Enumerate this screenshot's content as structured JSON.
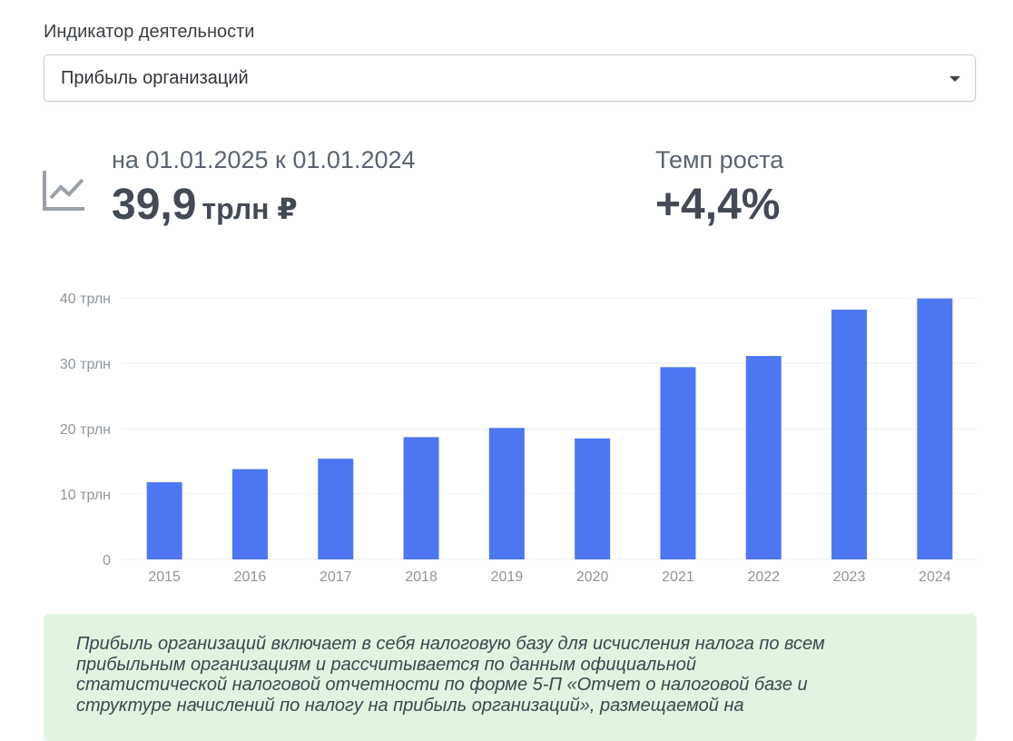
{
  "indicator": {
    "label": "Индикатор деятельности",
    "selected": "Прибыль организаций"
  },
  "summary": {
    "period": "на 01.01.2025 к 01.01.2024",
    "value": "39,9",
    "unit": "трлн ₽",
    "growth_label": "Темп роста",
    "growth_value": "+4,4%"
  },
  "colors": {
    "bar": "#4d76f2",
    "grid": "#ececec",
    "tick_text": "#8f959d",
    "note_bg": "#e3f3e1"
  },
  "icons": {
    "trend": "chart-line-icon",
    "dropdown": "caret-down-icon"
  },
  "chart_data": {
    "type": "bar",
    "categories": [
      "2015",
      "2016",
      "2017",
      "2018",
      "2019",
      "2020",
      "2021",
      "2022",
      "2023",
      "2024"
    ],
    "values": [
      11.8,
      13.8,
      15.4,
      18.7,
      20.1,
      18.5,
      29.4,
      31.1,
      38.2,
      39.9
    ],
    "ylim": [
      0,
      40
    ],
    "yticks": [
      0,
      10,
      20,
      30,
      40
    ],
    "ytick_labels": [
      "0",
      "10 трлн",
      "20 трлн",
      "30 трлн",
      "40 трлн"
    ],
    "grid": true,
    "title": "",
    "xlabel": "",
    "ylabel": ""
  },
  "note": {
    "text": "Прибыль организаций включает в себя налоговую базу для исчисления налога по всем прибыльным организациям и рассчитывается по данным официальной статистической налоговой отчетности по форме 5-П «Отчет о налоговой базе и структуре начислений по налогу на прибыль организаций», размещаемой на"
  }
}
